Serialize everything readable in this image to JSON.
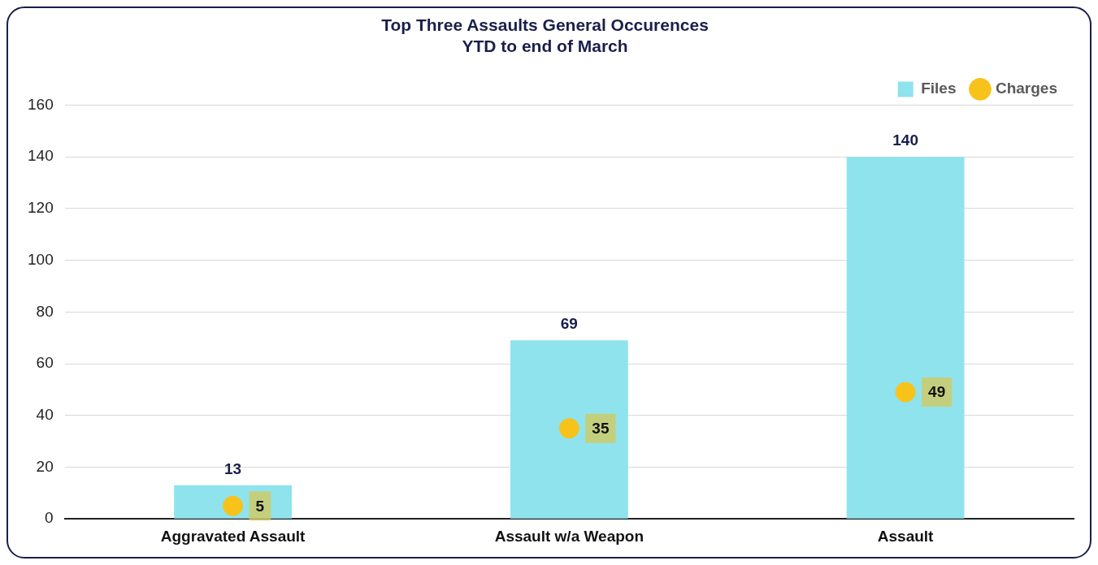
{
  "chart_data": {
    "type": "bar",
    "title": [
      "Top Three Assaults General Occurences",
      "YTD to end of March"
    ],
    "categories": [
      "Aggravated Assault",
      "Assault w/a Weapon",
      "Assault"
    ],
    "series": [
      {
        "name": "Files",
        "color": "#8fe3ec",
        "values": [
          13,
          69,
          140
        ]
      },
      {
        "name": "Charges",
        "type": "scatter",
        "color": "#f7c31a",
        "values": [
          5,
          35,
          49
        ]
      }
    ],
    "ylim": [
      0,
      160
    ],
    "yticks": [
      0,
      20,
      40,
      60,
      80,
      100,
      120,
      140,
      160
    ],
    "grid": "y",
    "legend": "top right",
    "data_labels": true,
    "marker": "circle"
  }
}
